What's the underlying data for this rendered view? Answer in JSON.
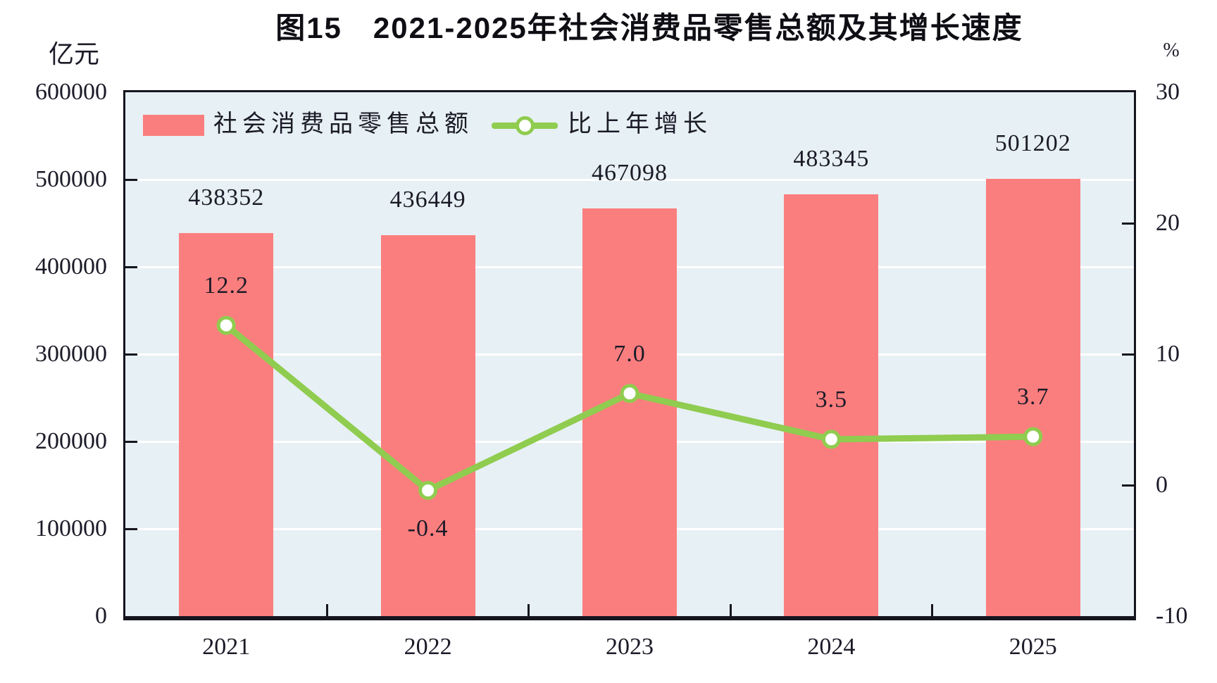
{
  "title": "图15　2021-2025年社会消费品零售总额及其增长速度",
  "left_axis_unit": "亿元",
  "right_axis_unit": "%",
  "legend": {
    "bar_label": "社会消费品零售总额",
    "line_label": "比上年增长"
  },
  "colors": {
    "bar": "#fb7e7e",
    "line": "#8fcc4f",
    "marker_fill": "#ffffff",
    "plot_background": "#e7f0f4",
    "gridline": "#ffffff",
    "frame": "#15151f",
    "text": "#1b1b28"
  },
  "chart_data": {
    "type": "bar",
    "title": "图15　2021-2025年社会消费品零售总额及其增长速度",
    "categories": [
      "2021",
      "2022",
      "2023",
      "2024",
      "2025"
    ],
    "series": [
      {
        "name": "社会消费品零售总额",
        "type": "bar",
        "axis": "left",
        "unit": "亿元",
        "values": [
          438352,
          436449,
          467098,
          483345,
          501202
        ],
        "value_labels": [
          "438352",
          "436449",
          "467098",
          "483345",
          "501202"
        ],
        "color": "#fb7e7e"
      },
      {
        "name": "比上年增长",
        "type": "line",
        "axis": "right",
        "unit": "%",
        "values": [
          12.2,
          -0.4,
          7.0,
          3.5,
          3.7
        ],
        "value_labels": [
          "12.2",
          "-0.4",
          "7.0",
          "3.5",
          "3.7"
        ],
        "color": "#8fcc4f"
      }
    ],
    "left_axis": {
      "unit": "亿元",
      "min": 0,
      "max": 600000,
      "tick_step": 100000,
      "tick_labels": [
        "0",
        "100000",
        "200000",
        "300000",
        "400000",
        "500000",
        "600000"
      ]
    },
    "right_axis": {
      "unit": "%",
      "min": -10,
      "max": 30,
      "tick_step": 10,
      "tick_labels": [
        "-10",
        "0",
        "10",
        "20",
        "30"
      ]
    },
    "grid": "horizontal white lines at each left-axis step",
    "legend_position": "top-left inside plot"
  }
}
